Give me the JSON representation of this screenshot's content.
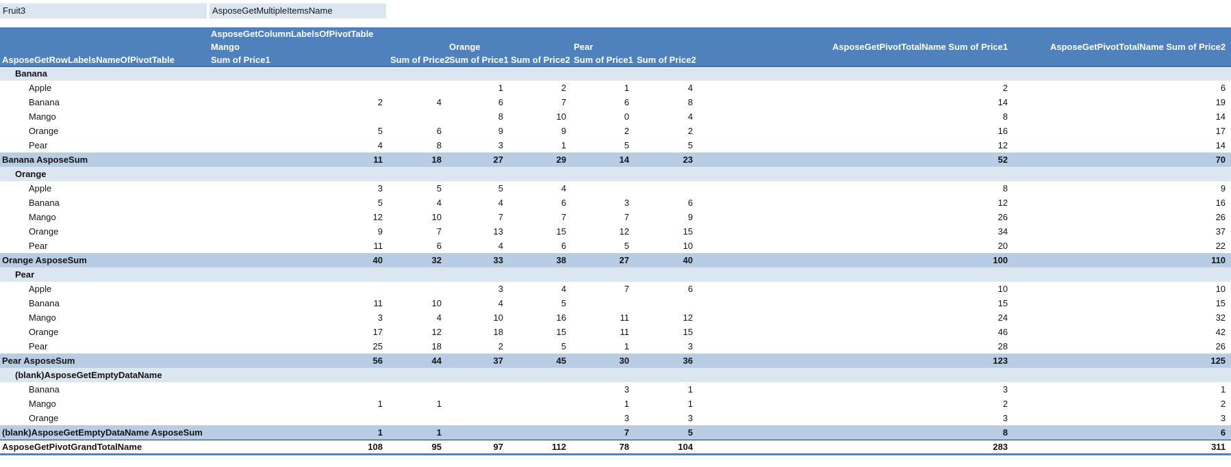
{
  "filter": {
    "field": "Fruit3",
    "value": "AsposeGetMultipleItemsName"
  },
  "pivot": {
    "column_labels_header": "AsposeGetColumnLabelsOfPivotTable",
    "row_labels_header": "AsposeGetRowLabelsNameOfPivotTable",
    "column_groups": [
      {
        "label": "Mango",
        "sub": [
          "Sum of Price1",
          "Sum of Price2"
        ]
      },
      {
        "label": "Orange",
        "sub": [
          "Sum of Price1",
          "Sum of Price2"
        ]
      },
      {
        "label": "Pear",
        "sub": [
          "Sum of Price1",
          "Sum of Price2"
        ]
      }
    ],
    "total_headers": [
      "AsposeGetPivotTotalName Sum of Price1",
      "AsposeGetPivotTotalName Sum of Price2"
    ],
    "rows": [
      {
        "type": "group",
        "label": "Banana",
        "values": [
          "",
          "",
          "",
          "",
          "",
          "",
          "",
          ""
        ]
      },
      {
        "type": "item",
        "label": "Apple",
        "values": [
          "",
          "",
          1,
          2,
          1,
          4,
          2,
          6
        ]
      },
      {
        "type": "item",
        "label": "Banana",
        "values": [
          2,
          4,
          6,
          7,
          6,
          8,
          14,
          19
        ]
      },
      {
        "type": "item",
        "label": "Mango",
        "values": [
          "",
          "",
          8,
          10,
          0,
          4,
          8,
          14
        ]
      },
      {
        "type": "item",
        "label": "Orange",
        "values": [
          5,
          6,
          9,
          9,
          2,
          2,
          16,
          17
        ]
      },
      {
        "type": "item",
        "label": "Pear",
        "values": [
          4,
          8,
          3,
          1,
          5,
          5,
          12,
          14
        ]
      },
      {
        "type": "subtotal",
        "label": "Banana AsposeSum",
        "values": [
          11,
          18,
          27,
          29,
          14,
          23,
          52,
          70
        ]
      },
      {
        "type": "group",
        "label": "Orange",
        "values": [
          "",
          "",
          "",
          "",
          "",
          "",
          "",
          ""
        ]
      },
      {
        "type": "item",
        "label": "Apple",
        "values": [
          3,
          5,
          5,
          4,
          "",
          "",
          8,
          9
        ]
      },
      {
        "type": "item",
        "label": "Banana",
        "values": [
          5,
          4,
          4,
          6,
          3,
          6,
          12,
          16
        ]
      },
      {
        "type": "item",
        "label": "Mango",
        "values": [
          12,
          10,
          7,
          7,
          7,
          9,
          26,
          26
        ]
      },
      {
        "type": "item",
        "label": "Orange",
        "values": [
          9,
          7,
          13,
          15,
          12,
          15,
          34,
          37
        ]
      },
      {
        "type": "item",
        "label": "Pear",
        "values": [
          11,
          6,
          4,
          6,
          5,
          10,
          20,
          22
        ]
      },
      {
        "type": "subtotal",
        "label": "Orange AsposeSum",
        "values": [
          40,
          32,
          33,
          38,
          27,
          40,
          100,
          110
        ]
      },
      {
        "type": "group",
        "label": "Pear",
        "values": [
          "",
          "",
          "",
          "",
          "",
          "",
          "",
          ""
        ]
      },
      {
        "type": "item",
        "label": "Apple",
        "values": [
          "",
          "",
          3,
          4,
          7,
          6,
          10,
          10
        ]
      },
      {
        "type": "item",
        "label": "Banana",
        "values": [
          11,
          10,
          4,
          5,
          "",
          "",
          15,
          15
        ]
      },
      {
        "type": "item",
        "label": "Mango",
        "values": [
          3,
          4,
          10,
          16,
          11,
          12,
          24,
          32
        ]
      },
      {
        "type": "item",
        "label": "Orange",
        "values": [
          17,
          12,
          18,
          15,
          11,
          15,
          46,
          42
        ]
      },
      {
        "type": "item",
        "label": "Pear",
        "values": [
          25,
          18,
          2,
          5,
          1,
          3,
          28,
          26
        ]
      },
      {
        "type": "subtotal",
        "label": "Pear AsposeSum",
        "values": [
          56,
          44,
          37,
          45,
          30,
          36,
          123,
          125
        ]
      },
      {
        "type": "group",
        "label": "(blank)AsposeGetEmptyDataName",
        "values": [
          "",
          "",
          "",
          "",
          "",
          "",
          "",
          ""
        ]
      },
      {
        "type": "item",
        "label": "Banana",
        "values": [
          "",
          "",
          "",
          "",
          3,
          1,
          3,
          1
        ]
      },
      {
        "type": "item",
        "label": "Mango",
        "values": [
          1,
          1,
          "",
          "",
          1,
          1,
          2,
          2
        ]
      },
      {
        "type": "item",
        "label": "Orange",
        "values": [
          "",
          "",
          "",
          "",
          3,
          3,
          3,
          3
        ]
      },
      {
        "type": "subtotal",
        "label": "(blank)AsposeGetEmptyDataName AsposeSum",
        "values": [
          1,
          1,
          "",
          "",
          7,
          5,
          8,
          6
        ]
      },
      {
        "type": "grandtotal",
        "label": "AsposeGetPivotGrandTotalName",
        "values": [
          108,
          95,
          97,
          112,
          78,
          104,
          283,
          311
        ]
      }
    ]
  },
  "colors": {
    "header_bg": "#4F81BD",
    "header_text": "#FFFFFF",
    "group_row_bg": "#DCE6F1",
    "subtotal_row_bg": "#B8CCE4",
    "filter_cell_bg": "#DCE6F1",
    "grand_total_border": "#4F81BD",
    "dark_line": "#17375D"
  }
}
